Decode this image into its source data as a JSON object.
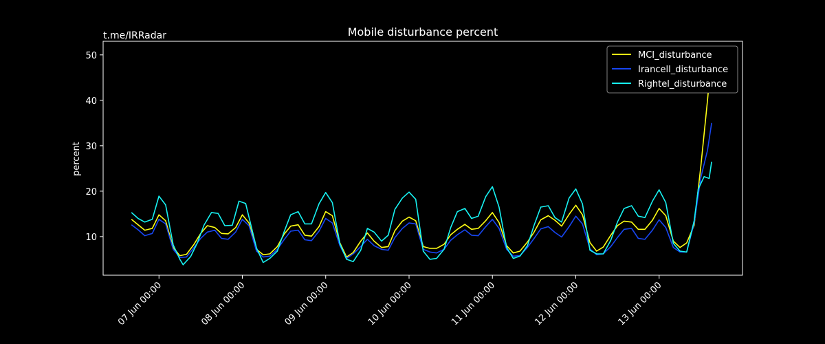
{
  "watermark": "t.me/IRRadar",
  "chart_data": {
    "type": "line",
    "title": "Mobile disturbance percent",
    "xlabel": "",
    "ylabel": "percent",
    "ylim": [
      1.5,
      53
    ],
    "xlim_days": [
      6.33,
      14.0
    ],
    "yticks": [
      10,
      20,
      30,
      40,
      50
    ],
    "xticks": [
      {
        "day": 7,
        "label": "07 Jun 00:00"
      },
      {
        "day": 8,
        "label": "08 Jun 00:00"
      },
      {
        "day": 9,
        "label": "09 Jun 00:00"
      },
      {
        "day": 10,
        "label": "10 Jun 00:00"
      },
      {
        "day": 11,
        "label": "11 Jun 00:00"
      },
      {
        "day": 12,
        "label": "12 Jun 00:00"
      },
      {
        "day": 13,
        "label": "13 Jun 00:00"
      }
    ],
    "grid": false,
    "legend_position": "top-right",
    "series": [
      {
        "name": "MCI_disturbance",
        "color": "#ffff14",
        "points": [
          [
            6.67,
            13.8
          ],
          [
            6.75,
            12.6
          ],
          [
            6.83,
            11.4
          ],
          [
            6.92,
            11.8
          ],
          [
            7.0,
            14.8
          ],
          [
            7.08,
            13.5
          ],
          [
            7.17,
            7.6
          ],
          [
            7.25,
            5.8
          ],
          [
            7.33,
            6.1
          ],
          [
            7.42,
            8.3
          ],
          [
            7.5,
            10.7
          ],
          [
            7.58,
            12.4
          ],
          [
            7.67,
            12.0
          ],
          [
            7.75,
            10.7
          ],
          [
            7.83,
            10.6
          ],
          [
            7.92,
            12.0
          ],
          [
            8.0,
            14.8
          ],
          [
            8.08,
            13.0
          ],
          [
            8.17,
            7.2
          ],
          [
            8.25,
            6.0
          ],
          [
            8.33,
            6.2
          ],
          [
            8.42,
            7.8
          ],
          [
            8.5,
            10.5
          ],
          [
            8.58,
            12.3
          ],
          [
            8.67,
            12.6
          ],
          [
            8.75,
            10.3
          ],
          [
            8.83,
            10.1
          ],
          [
            8.92,
            12.2
          ],
          [
            9.0,
            15.5
          ],
          [
            9.08,
            14.6
          ],
          [
            9.17,
            8.6
          ],
          [
            9.25,
            5.5
          ],
          [
            9.33,
            6.5
          ],
          [
            9.42,
            9.0
          ],
          [
            9.5,
            10.8
          ],
          [
            9.58,
            9.0
          ],
          [
            9.67,
            7.6
          ],
          [
            9.75,
            7.8
          ],
          [
            9.83,
            11.3
          ],
          [
            9.92,
            13.4
          ],
          [
            10.0,
            14.3
          ],
          [
            10.08,
            13.5
          ],
          [
            10.17,
            7.8
          ],
          [
            10.25,
            7.4
          ],
          [
            10.33,
            7.4
          ],
          [
            10.42,
            8.3
          ],
          [
            10.5,
            10.4
          ],
          [
            10.58,
            11.6
          ],
          [
            10.67,
            12.7
          ],
          [
            10.75,
            11.6
          ],
          [
            10.83,
            11.8
          ],
          [
            10.92,
            13.5
          ],
          [
            11.0,
            15.3
          ],
          [
            11.08,
            13.1
          ],
          [
            11.17,
            8.0
          ],
          [
            11.25,
            6.4
          ],
          [
            11.33,
            6.8
          ],
          [
            11.42,
            8.8
          ],
          [
            11.5,
            11.0
          ],
          [
            11.58,
            13.7
          ],
          [
            11.67,
            14.6
          ],
          [
            11.75,
            13.6
          ],
          [
            11.83,
            12.3
          ],
          [
            11.92,
            14.9
          ],
          [
            12.0,
            16.9
          ],
          [
            12.08,
            14.8
          ],
          [
            12.17,
            8.7
          ],
          [
            12.25,
            6.8
          ],
          [
            12.33,
            7.7
          ],
          [
            12.42,
            10.3
          ],
          [
            12.5,
            12.4
          ],
          [
            12.58,
            13.4
          ],
          [
            12.67,
            13.2
          ],
          [
            12.75,
            11.6
          ],
          [
            12.83,
            11.6
          ],
          [
            12.92,
            13.6
          ],
          [
            13.0,
            16.2
          ],
          [
            13.08,
            14.6
          ],
          [
            13.17,
            9.0
          ],
          [
            13.25,
            7.6
          ],
          [
            13.33,
            8.6
          ],
          [
            13.42,
            12.5
          ],
          [
            13.5,
            25.5
          ],
          [
            13.58,
            40.0
          ],
          [
            13.63,
            50.0
          ]
        ]
      },
      {
        "name": "Irancell_disturbance",
        "color": "#1746f2",
        "points": [
          [
            6.67,
            12.6
          ],
          [
            6.75,
            11.5
          ],
          [
            6.83,
            10.2
          ],
          [
            6.92,
            10.7
          ],
          [
            7.0,
            13.8
          ],
          [
            7.08,
            12.8
          ],
          [
            7.17,
            7.2
          ],
          [
            7.25,
            5.4
          ],
          [
            7.33,
            5.5
          ],
          [
            7.42,
            7.6
          ],
          [
            7.5,
            9.6
          ],
          [
            7.58,
            11.0
          ],
          [
            7.67,
            11.4
          ],
          [
            7.75,
            9.6
          ],
          [
            7.83,
            9.4
          ],
          [
            7.92,
            11.0
          ],
          [
            8.0,
            13.8
          ],
          [
            8.08,
            12.4
          ],
          [
            8.17,
            6.8
          ],
          [
            8.25,
            5.5
          ],
          [
            8.33,
            5.7
          ],
          [
            8.42,
            7.2
          ],
          [
            8.5,
            9.3
          ],
          [
            8.58,
            11.2
          ],
          [
            8.67,
            11.4
          ],
          [
            8.75,
            9.3
          ],
          [
            8.83,
            9.1
          ],
          [
            8.92,
            11.2
          ],
          [
            9.0,
            14.0
          ],
          [
            9.08,
            13.0
          ],
          [
            9.17,
            8.0
          ],
          [
            9.25,
            5.2
          ],
          [
            9.33,
            6.2
          ],
          [
            9.42,
            7.8
          ],
          [
            9.5,
            9.4
          ],
          [
            9.58,
            8.0
          ],
          [
            9.67,
            7.2
          ],
          [
            9.75,
            7.0
          ],
          [
            9.83,
            9.8
          ],
          [
            9.92,
            11.8
          ],
          [
            10.0,
            13.0
          ],
          [
            10.08,
            12.8
          ],
          [
            10.17,
            7.2
          ],
          [
            10.25,
            6.6
          ],
          [
            10.33,
            6.4
          ],
          [
            10.42,
            7.2
          ],
          [
            10.5,
            9.2
          ],
          [
            10.58,
            10.4
          ],
          [
            10.67,
            11.5
          ],
          [
            10.75,
            10.3
          ],
          [
            10.83,
            10.2
          ],
          [
            10.92,
            12.2
          ],
          [
            11.0,
            13.8
          ],
          [
            11.08,
            11.8
          ],
          [
            11.17,
            7.2
          ],
          [
            11.25,
            5.7
          ],
          [
            11.33,
            5.8
          ],
          [
            11.42,
            7.6
          ],
          [
            11.5,
            9.6
          ],
          [
            11.58,
            11.7
          ],
          [
            11.67,
            12.2
          ],
          [
            11.75,
            10.9
          ],
          [
            11.83,
            9.9
          ],
          [
            11.92,
            12.2
          ],
          [
            12.0,
            14.5
          ],
          [
            12.08,
            12.8
          ],
          [
            12.17,
            7.3
          ],
          [
            12.25,
            6.0
          ],
          [
            12.33,
            6.2
          ],
          [
            12.42,
            7.8
          ],
          [
            12.5,
            9.8
          ],
          [
            12.58,
            11.6
          ],
          [
            12.67,
            11.8
          ],
          [
            12.75,
            9.6
          ],
          [
            12.83,
            9.4
          ],
          [
            12.92,
            11.4
          ],
          [
            13.0,
            13.7
          ],
          [
            13.08,
            12.0
          ],
          [
            13.17,
            7.6
          ],
          [
            13.25,
            6.6
          ],
          [
            13.33,
            6.6
          ],
          [
            13.42,
            13.0
          ],
          [
            13.5,
            23.0
          ],
          [
            13.58,
            29.0
          ],
          [
            13.63,
            35.0
          ]
        ]
      },
      {
        "name": "Rightel_disturbance",
        "color": "#17f2f2",
        "points": [
          [
            6.67,
            15.3
          ],
          [
            6.75,
            14.0
          ],
          [
            6.83,
            13.2
          ],
          [
            6.92,
            13.8
          ],
          [
            7.0,
            18.9
          ],
          [
            7.08,
            17.0
          ],
          [
            7.17,
            8.2
          ],
          [
            7.25,
            5.0
          ],
          [
            7.29,
            3.8
          ],
          [
            7.38,
            5.6
          ],
          [
            7.46,
            8.6
          ],
          [
            7.54,
            12.5
          ],
          [
            7.63,
            15.3
          ],
          [
            7.71,
            15.1
          ],
          [
            7.79,
            12.4
          ],
          [
            7.88,
            12.5
          ],
          [
            7.96,
            17.8
          ],
          [
            8.04,
            17.3
          ],
          [
            8.17,
            7.5
          ],
          [
            8.25,
            4.3
          ],
          [
            8.33,
            5.2
          ],
          [
            8.42,
            6.8
          ],
          [
            8.5,
            11.0
          ],
          [
            8.58,
            14.8
          ],
          [
            8.67,
            15.5
          ],
          [
            8.75,
            12.8
          ],
          [
            8.83,
            12.8
          ],
          [
            8.92,
            17.2
          ],
          [
            9.0,
            19.7
          ],
          [
            9.08,
            17.5
          ],
          [
            9.17,
            8.4
          ],
          [
            9.25,
            5.0
          ],
          [
            9.33,
            4.5
          ],
          [
            9.42,
            7.0
          ],
          [
            9.5,
            11.8
          ],
          [
            9.58,
            11.0
          ],
          [
            9.67,
            9.0
          ],
          [
            9.75,
            10.3
          ],
          [
            9.83,
            16.0
          ],
          [
            9.92,
            18.5
          ],
          [
            10.0,
            19.8
          ],
          [
            10.08,
            18.2
          ],
          [
            10.17,
            6.8
          ],
          [
            10.25,
            5.0
          ],
          [
            10.33,
            5.2
          ],
          [
            10.42,
            7.2
          ],
          [
            10.5,
            12.0
          ],
          [
            10.58,
            15.5
          ],
          [
            10.67,
            16.2
          ],
          [
            10.75,
            14.0
          ],
          [
            10.83,
            14.5
          ],
          [
            10.92,
            18.8
          ],
          [
            11.0,
            21.0
          ],
          [
            11.08,
            16.5
          ],
          [
            11.17,
            7.6
          ],
          [
            11.25,
            5.2
          ],
          [
            11.33,
            5.7
          ],
          [
            11.42,
            8.0
          ],
          [
            11.5,
            12.5
          ],
          [
            11.58,
            16.5
          ],
          [
            11.67,
            16.8
          ],
          [
            11.75,
            14.2
          ],
          [
            11.83,
            13.2
          ],
          [
            11.92,
            18.5
          ],
          [
            12.0,
            20.5
          ],
          [
            12.08,
            17.2
          ],
          [
            12.17,
            7.0
          ],
          [
            12.25,
            6.2
          ],
          [
            12.33,
            6.2
          ],
          [
            12.42,
            9.2
          ],
          [
            12.5,
            13.2
          ],
          [
            12.58,
            16.2
          ],
          [
            12.67,
            16.8
          ],
          [
            12.75,
            14.5
          ],
          [
            12.83,
            14.2
          ],
          [
            12.92,
            17.8
          ],
          [
            13.0,
            20.3
          ],
          [
            13.08,
            17.5
          ],
          [
            13.17,
            8.5
          ],
          [
            13.25,
            6.8
          ],
          [
            13.33,
            6.6
          ],
          [
            13.42,
            13.5
          ],
          [
            13.47,
            20.5
          ],
          [
            13.54,
            23.2
          ],
          [
            13.6,
            22.8
          ],
          [
            13.63,
            26.5
          ]
        ]
      }
    ]
  }
}
